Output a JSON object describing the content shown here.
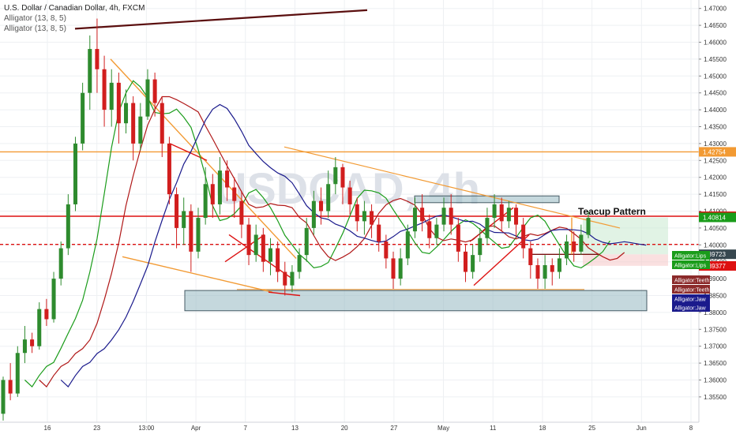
{
  "header": {
    "symbol_line": "U.S. Dollar / Canadian Dollar, 4h, FXCM",
    "indicators": [
      "Alligator (13, 8, 5)",
      "Alligator (13, 8, 5)"
    ]
  },
  "watermark": {
    "text": "USDCAD, 4h",
    "color": "#dde1e8"
  },
  "colors": {
    "up_candle": "#2e8b2e",
    "down_candle": "#d11e1e",
    "alligator_lips": "#1a9c1a",
    "alligator_teeth": "#b01818",
    "alligator_jaw": "#1a1a8c",
    "trendline_orange": "#f29a33",
    "resistance_red": "#dd1111",
    "support_zone": "#9fbec6",
    "grid": "#eef0f3",
    "axis_text": "#333333"
  },
  "chart_data": {
    "type": "candlestick",
    "title": "U.S. Dollar / Canadian Dollar, 4h, FXCM",
    "ylim": [
      1.3475,
      1.4725
    ],
    "y_ticks": [
      "1.35500",
      "1.36000",
      "1.36500",
      "1.37000",
      "1.37500",
      "1.38000",
      "1.38500",
      "1.39000",
      "1.39500",
      "1.40000",
      "1.40500",
      "1.41000",
      "1.41500",
      "1.42000",
      "1.42500",
      "1.43000",
      "1.43500",
      "1.44000",
      "1.44500",
      "1.45000",
      "1.45500",
      "1.46000",
      "1.46500",
      "1.47000"
    ],
    "x_ticks": [
      "16",
      "23",
      "13:00",
      "Apr",
      "7",
      "13",
      "20",
      "27",
      "May",
      "11",
      "18",
      "25",
      "Jun",
      "8"
    ],
    "x_range": [
      0,
      885
    ],
    "candles": [
      [
        1.35,
        1.36,
        1.348,
        1.361
      ],
      [
        1.36,
        1.356,
        1.354,
        1.365
      ],
      [
        1.356,
        1.368,
        1.355,
        1.37
      ],
      [
        1.368,
        1.372,
        1.365,
        1.376
      ],
      [
        1.372,
        1.37,
        1.368,
        1.374
      ],
      [
        1.37,
        1.381,
        1.369,
        1.383
      ],
      [
        1.381,
        1.378,
        1.376,
        1.384
      ],
      [
        1.378,
        1.39,
        1.377,
        1.392
      ],
      [
        1.39,
        1.399,
        1.388,
        1.401
      ],
      [
        1.399,
        1.412,
        1.397,
        1.415
      ],
      [
        1.412,
        1.43,
        1.41,
        1.432
      ],
      [
        1.43,
        1.445,
        1.428,
        1.448
      ],
      [
        1.445,
        1.458,
        1.44,
        1.462
      ],
      [
        1.458,
        1.452,
        1.445,
        1.467
      ],
      [
        1.452,
        1.44,
        1.435,
        1.456
      ],
      [
        1.44,
        1.448,
        1.435,
        1.452
      ],
      [
        1.448,
        1.436,
        1.43,
        1.451
      ],
      [
        1.436,
        1.442,
        1.433,
        1.446
      ],
      [
        1.442,
        1.43,
        1.425,
        1.444
      ],
      [
        1.43,
        1.438,
        1.428,
        1.442
      ],
      [
        1.438,
        1.449,
        1.437,
        1.452
      ],
      [
        1.449,
        1.442,
        1.438,
        1.451
      ],
      [
        1.442,
        1.43,
        1.426,
        1.444
      ],
      [
        1.43,
        1.415,
        1.412,
        1.432
      ],
      [
        1.415,
        1.405,
        1.399,
        1.417
      ],
      [
        1.405,
        1.41,
        1.4,
        1.414
      ],
      [
        1.41,
        1.398,
        1.392,
        1.412
      ],
      [
        1.398,
        1.408,
        1.396,
        1.411
      ],
      [
        1.408,
        1.418,
        1.406,
        1.423
      ],
      [
        1.418,
        1.412,
        1.408,
        1.421
      ],
      [
        1.412,
        1.422,
        1.409,
        1.426
      ],
      [
        1.422,
        1.417,
        1.413,
        1.425
      ],
      [
        1.417,
        1.413,
        1.408,
        1.42
      ],
      [
        1.413,
        1.406,
        1.402,
        1.416
      ],
      [
        1.406,
        1.397,
        1.394,
        1.408
      ],
      [
        1.397,
        1.403,
        1.395,
        1.406
      ],
      [
        1.403,
        1.395,
        1.392,
        1.405
      ],
      [
        1.395,
        1.399,
        1.391,
        1.402
      ],
      [
        1.399,
        1.392,
        1.389,
        1.401
      ],
      [
        1.392,
        1.388,
        1.385,
        1.395
      ],
      [
        1.388,
        1.392,
        1.386,
        1.394
      ],
      [
        1.392,
        1.397,
        1.39,
        1.399
      ],
      [
        1.397,
        1.405,
        1.395,
        1.408
      ],
      [
        1.405,
        1.413,
        1.403,
        1.416
      ],
      [
        1.413,
        1.41,
        1.406,
        1.417
      ],
      [
        1.41,
        1.418,
        1.408,
        1.422
      ],
      [
        1.418,
        1.423,
        1.415,
        1.426
      ],
      [
        1.423,
        1.417,
        1.412,
        1.424
      ],
      [
        1.417,
        1.412,
        1.409,
        1.419
      ],
      [
        1.412,
        1.407,
        1.404,
        1.414
      ],
      [
        1.407,
        1.41,
        1.403,
        1.413
      ],
      [
        1.41,
        1.406,
        1.402,
        1.412
      ],
      [
        1.406,
        1.401,
        1.398,
        1.408
      ],
      [
        1.401,
        1.396,
        1.393,
        1.403
      ],
      [
        1.396,
        1.39,
        1.387,
        1.398
      ],
      [
        1.39,
        1.396,
        1.388,
        1.399
      ],
      [
        1.396,
        1.404,
        1.394,
        1.406
      ],
      [
        1.404,
        1.411,
        1.402,
        1.414
      ],
      [
        1.411,
        1.407,
        1.404,
        1.415
      ],
      [
        1.407,
        1.402,
        1.399,
        1.409
      ],
      [
        1.402,
        1.406,
        1.4,
        1.408
      ],
      [
        1.406,
        1.411,
        1.404,
        1.414
      ],
      [
        1.411,
        1.406,
        1.403,
        1.415
      ],
      [
        1.406,
        1.398,
        1.395,
        1.408
      ],
      [
        1.398,
        1.392,
        1.389,
        1.4
      ],
      [
        1.392,
        1.397,
        1.39,
        1.4
      ],
      [
        1.397,
        1.402,
        1.395,
        1.405
      ],
      [
        1.402,
        1.408,
        1.4,
        1.411
      ],
      [
        1.408,
        1.412,
        1.405,
        1.415
      ],
      [
        1.412,
        1.407,
        1.404,
        1.414
      ],
      [
        1.407,
        1.411,
        1.405,
        1.413
      ],
      [
        1.411,
        1.406,
        1.402,
        1.412
      ],
      [
        1.406,
        1.399,
        1.396,
        1.408
      ],
      [
        1.399,
        1.394,
        1.39,
        1.401
      ],
      [
        1.394,
        1.39,
        1.387,
        1.396
      ],
      [
        1.39,
        1.394,
        1.387,
        1.397
      ],
      [
        1.394,
        1.392,
        1.388,
        1.396
      ],
      [
        1.392,
        1.396,
        1.39,
        1.399
      ],
      [
        1.396,
        1.401,
        1.394,
        1.403
      ],
      [
        1.401,
        1.398,
        1.395,
        1.404
      ],
      [
        1.398,
        1.403,
        1.397,
        1.406
      ],
      [
        1.403,
        1.408,
        1.402,
        1.41
      ]
    ],
    "horizontal_levels": [
      {
        "label": "1.42754",
        "value": 1.42754,
        "color": "#f29a33"
      },
      {
        "label": "1.40848",
        "value": 1.40848,
        "color": "#dd1111"
      },
      {
        "label": "1.40014",
        "value": 1.40014,
        "color": "#dd1111",
        "dashed": true
      }
    ],
    "price_tags": [
      {
        "label": "1.42754",
        "value": 1.42754,
        "bg": "#f29a33",
        "fg": "#ffffff"
      },
      {
        "label": "1.40848",
        "value": 1.40848,
        "bg": "#dd1111",
        "fg": "#ffffff"
      },
      {
        "label": "1.40814",
        "value": 1.40814,
        "bg": "#1a9c1a",
        "fg": "#ffffff"
      },
      {
        "label": "1.39723",
        "value": 1.39723,
        "bg": "#37474f",
        "fg": "#ffffff"
      },
      {
        "label": "1.39377",
        "value": 1.39377,
        "bg": "#dd1111",
        "fg": "#ffffff"
      }
    ],
    "alligator_labels": [
      {
        "text": "Alligator:Lips",
        "bg": "#1a9c1a"
      },
      {
        "text": "Alligator:Lips",
        "bg": "#1a9c1a"
      },
      {
        "text": "Alligator:Teeth",
        "bg": "#8b2a2a"
      },
      {
        "text": "Alligator:Teeth",
        "bg": "#8b2a2a"
      },
      {
        "text": "Alligator:Jaw",
        "bg": "#1a1a8c"
      },
      {
        "text": "Alligator:Jaw",
        "bg": "#1a1a8c"
      }
    ],
    "annotations": [
      {
        "text": "Teacup Pattern"
      }
    ]
  }
}
